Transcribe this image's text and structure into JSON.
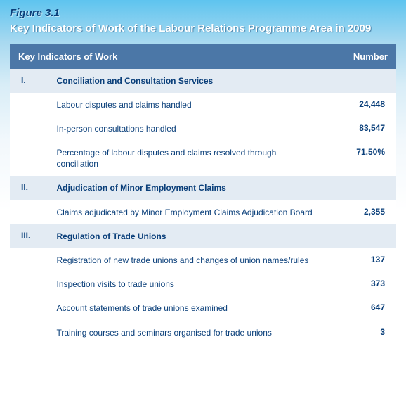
{
  "figure_label": "Figure 3.1",
  "figure_title": "Key Indicators of Work of the Labour Relations Programme Area in 2009",
  "table": {
    "header": {
      "col1": "Key Indicators of Work",
      "col2": "Number"
    },
    "rows": [
      {
        "type": "section",
        "idx": "I.",
        "desc": "Conciliation and Consultation Services",
        "val": ""
      },
      {
        "type": "detail",
        "idx": "",
        "desc": "Labour disputes and claims handled",
        "val": "24,448"
      },
      {
        "type": "detail",
        "idx": "",
        "desc": "In-person consultations handled",
        "val": "83,547"
      },
      {
        "type": "detail",
        "idx": "",
        "desc": "Percentage of labour disputes and claims resolved through conciliation",
        "val": "71.50%"
      },
      {
        "type": "section",
        "idx": "II.",
        "desc": "Adjudication of Minor Employment Claims",
        "val": ""
      },
      {
        "type": "detail",
        "idx": "",
        "desc": "Claims adjudicated by Minor Employment Claims Adjudication Board",
        "val": "2,355"
      },
      {
        "type": "section",
        "idx": "III.",
        "desc": "Regulation of Trade Unions",
        "val": ""
      },
      {
        "type": "detail",
        "idx": "",
        "desc": "Registration of new trade unions and changes of union names/rules",
        "val": "137"
      },
      {
        "type": "detail",
        "idx": "",
        "desc": "Inspection visits to trade unions",
        "val": "373"
      },
      {
        "type": "detail",
        "idx": "",
        "desc": "Account statements of trade unions examined",
        "val": "647"
      },
      {
        "type": "detail",
        "idx": "",
        "desc": "Training courses and seminars organised for trade unions",
        "val": "3"
      }
    ]
  },
  "colors": {
    "header_bg": "#4b77a7",
    "section_bg": "#e3ebf3",
    "text": "#0a3f7a",
    "border": "#d0dce8",
    "gradient_top": "#5ec4ef"
  }
}
